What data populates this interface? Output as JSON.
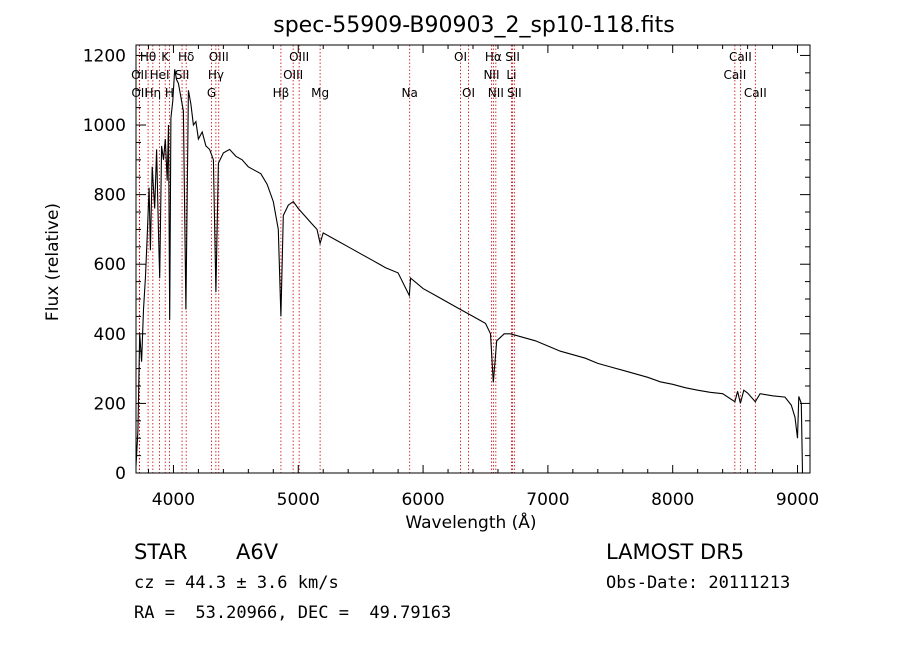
{
  "chart_data": {
    "type": "line",
    "title": "spec-55909-B90903_2_sp10-118.fits",
    "xlabel": "Wavelength (Å)",
    "ylabel": "Flux (relative)",
    "xlim": [
      3700,
      9100
    ],
    "ylim": [
      0,
      1230
    ],
    "xticks": [
      4000,
      5000,
      6000,
      7000,
      8000,
      9000
    ],
    "yticks": [
      0,
      200,
      400,
      600,
      800,
      1000,
      1200
    ],
    "line_color": "#000000",
    "marker_color": "#cc0000",
    "series": [
      {
        "points": [
          [
            3700,
            20
          ],
          [
            3715,
            120
          ],
          [
            3730,
            400
          ],
          [
            3745,
            320
          ],
          [
            3760,
            470
          ],
          [
            3775,
            560
          ],
          [
            3790,
            680
          ],
          [
            3805,
            820
          ],
          [
            3815,
            640
          ],
          [
            3830,
            880
          ],
          [
            3850,
            760
          ],
          [
            3865,
            930
          ],
          [
            3880,
            690
          ],
          [
            3890,
            560
          ],
          [
            3905,
            940
          ],
          [
            3920,
            900
          ],
          [
            3935,
            960
          ],
          [
            3950,
            840
          ],
          [
            3960,
            1000
          ],
          [
            3970,
            440
          ],
          [
            3980,
            1020
          ],
          [
            3995,
            1070
          ],
          [
            4010,
            1160
          ],
          [
            4025,
            1130
          ],
          [
            4040,
            1120
          ],
          [
            4060,
            1080
          ],
          [
            4080,
            1040
          ],
          [
            4100,
            470
          ],
          [
            4120,
            1100
          ],
          [
            4140,
            1060
          ],
          [
            4160,
            1000
          ],
          [
            4180,
            1010
          ],
          [
            4200,
            960
          ],
          [
            4230,
            980
          ],
          [
            4260,
            940
          ],
          [
            4290,
            930
          ],
          [
            4320,
            900
          ],
          [
            4340,
            520
          ],
          [
            4360,
            890
          ],
          [
            4400,
            920
          ],
          [
            4450,
            930
          ],
          [
            4500,
            910
          ],
          [
            4550,
            900
          ],
          [
            4600,
            880
          ],
          [
            4650,
            870
          ],
          [
            4700,
            860
          ],
          [
            4750,
            830
          ],
          [
            4800,
            780
          ],
          [
            4840,
            700
          ],
          [
            4861,
            450
          ],
          [
            4880,
            740
          ],
          [
            4920,
            770
          ],
          [
            4960,
            780
          ],
          [
            5000,
            760
          ],
          [
            5050,
            740
          ],
          [
            5100,
            720
          ],
          [
            5150,
            700
          ],
          [
            5175,
            660
          ],
          [
            5200,
            690
          ],
          [
            5300,
            670
          ],
          [
            5400,
            650
          ],
          [
            5500,
            630
          ],
          [
            5600,
            610
          ],
          [
            5700,
            590
          ],
          [
            5800,
            575
          ],
          [
            5890,
            510
          ],
          [
            5900,
            560
          ],
          [
            6000,
            530
          ],
          [
            6100,
            510
          ],
          [
            6200,
            490
          ],
          [
            6300,
            470
          ],
          [
            6400,
            450
          ],
          [
            6500,
            430
          ],
          [
            6540,
            400
          ],
          [
            6563,
            260
          ],
          [
            6590,
            380
          ],
          [
            6650,
            400
          ],
          [
            6700,
            400
          ],
          [
            6800,
            390
          ],
          [
            6900,
            380
          ],
          [
            7000,
            365
          ],
          [
            7100,
            350
          ],
          [
            7200,
            340
          ],
          [
            7300,
            330
          ],
          [
            7400,
            315
          ],
          [
            7500,
            305
          ],
          [
            7600,
            295
          ],
          [
            7700,
            285
          ],
          [
            7800,
            275
          ],
          [
            7900,
            262
          ],
          [
            8000,
            255
          ],
          [
            8100,
            245
          ],
          [
            8200,
            238
          ],
          [
            8300,
            232
          ],
          [
            8400,
            228
          ],
          [
            8498,
            205
          ],
          [
            8520,
            235
          ],
          [
            8542,
            200
          ],
          [
            8570,
            238
          ],
          [
            8600,
            230
          ],
          [
            8662,
            205
          ],
          [
            8700,
            228
          ],
          [
            8800,
            222
          ],
          [
            8900,
            218
          ],
          [
            8950,
            195
          ],
          [
            8980,
            160
          ],
          [
            9000,
            100
          ],
          [
            9010,
            220
          ],
          [
            9030,
            200
          ],
          [
            9040,
            0
          ]
        ]
      }
    ],
    "annotations": [
      {
        "label": "Hθ",
        "x": 3797,
        "row": 0
      },
      {
        "label": "K",
        "x": 3934,
        "row": 0
      },
      {
        "label": "Hδ",
        "x": 4102,
        "row": 0
      },
      {
        "label": "OIII",
        "x": 4363,
        "row": 0
      },
      {
        "label": "OIII",
        "x": 5007,
        "row": 0
      },
      {
        "label": "OI",
        "x": 6300,
        "row": 0
      },
      {
        "label": "Hα",
        "x": 6563,
        "row": 0
      },
      {
        "label": "SII",
        "x": 6717,
        "row": 0
      },
      {
        "label": "CaII",
        "x": 8542,
        "row": 0
      },
      {
        "label": "OII",
        "x": 3727,
        "row": 1
      },
      {
        "label": "HeI",
        "x": 3889,
        "row": 1
      },
      {
        "label": "SII",
        "x": 4069,
        "row": 1
      },
      {
        "label": "Hγ",
        "x": 4340,
        "row": 1
      },
      {
        "label": "OIII",
        "x": 4959,
        "row": 1
      },
      {
        "label": "NII",
        "x": 6548,
        "row": 1
      },
      {
        "label": "Li",
        "x": 6708,
        "row": 1
      },
      {
        "label": "CaII",
        "x": 8498,
        "row": 1
      },
      {
        "label": "OII",
        "x": 3729,
        "row": 2
      },
      {
        "label": "Hη",
        "x": 3835,
        "row": 2
      },
      {
        "label": "H",
        "x": 3968,
        "row": 2
      },
      {
        "label": "G",
        "x": 4305,
        "row": 2
      },
      {
        "label": "Hβ",
        "x": 4861,
        "row": 2
      },
      {
        "label": "Mg",
        "x": 5175,
        "row": 2
      },
      {
        "label": "Na",
        "x": 5893,
        "row": 2
      },
      {
        "label": "OI",
        "x": 6364,
        "row": 2
      },
      {
        "label": "NII",
        "x": 6583,
        "row": 2
      },
      {
        "label": "SII",
        "x": 6731,
        "row": 2
      },
      {
        "label": "CaII",
        "x": 8662,
        "row": 2
      }
    ]
  },
  "info": {
    "class_label": "STAR",
    "subclass": "A6V",
    "survey": "LAMOST DR5",
    "cz": "cz = 44.3 ± 3.6 km/s",
    "obs_date": "Obs-Date: 20111213",
    "radec": "RA =  53.20966, DEC =  49.79163"
  }
}
